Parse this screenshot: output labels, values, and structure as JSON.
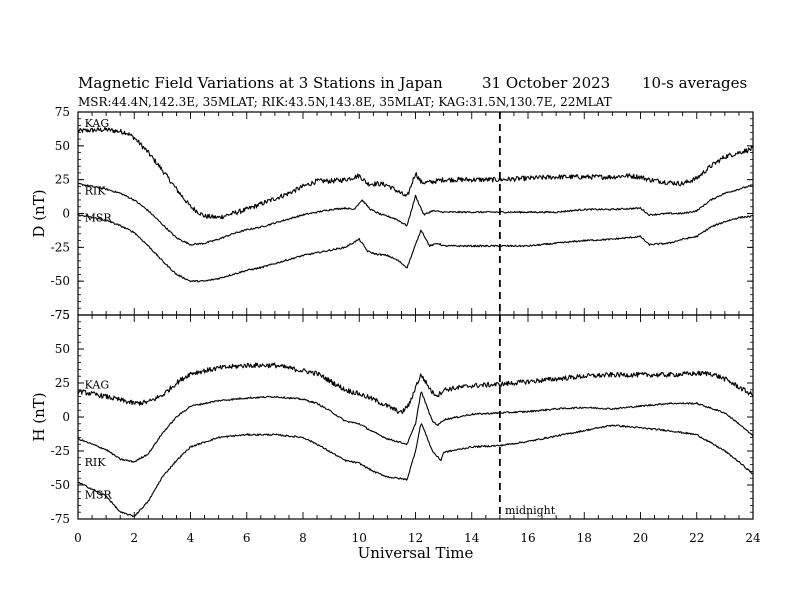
{
  "title": "Magnetic Field Variations at 3 Stations in Japan",
  "date": "31 October 2023",
  "averaging": "10-s averages",
  "subtitle": "MSR:44.4N,142.3E, 35MLAT;  RIK:43.5N,143.8E, 35MLAT;  KAG:31.5N,130.7E, 22MLAT",
  "annotation": "midnight",
  "chart_data": [
    {
      "type": "line",
      "panel": "top",
      "ylabel": "D (nT)",
      "xlabel": "",
      "xlim": [
        0,
        24
      ],
      "ylim": [
        -75,
        75
      ],
      "xticks": [
        0,
        2,
        4,
        6,
        8,
        10,
        12,
        14,
        16,
        18,
        20,
        22,
        24
      ],
      "yticks": [
        75,
        50,
        25,
        0,
        -25,
        -50,
        -75
      ],
      "vline": 15,
      "grid": false,
      "series": [
        {
          "name": "KAG",
          "noise": 1.8,
          "points": [
            [
              0,
              61
            ],
            [
              1,
              62
            ],
            [
              1.7,
              60
            ],
            [
              2,
              56
            ],
            [
              2.5,
              45
            ],
            [
              3,
              32
            ],
            [
              3.5,
              18
            ],
            [
              4,
              5
            ],
            [
              4.5,
              -2
            ],
            [
              5,
              -3
            ],
            [
              5.5,
              0
            ],
            [
              6,
              3
            ],
            [
              6.5,
              7
            ],
            [
              7,
              11
            ],
            [
              7.5,
              15
            ],
            [
              8,
              20
            ],
            [
              8.5,
              24
            ],
            [
              9,
              24
            ],
            [
              9.5,
              25
            ],
            [
              10,
              28
            ],
            [
              10.3,
              22
            ],
            [
              10.7,
              22
            ],
            [
              11,
              21
            ],
            [
              11.4,
              16
            ],
            [
              11.7,
              12
            ],
            [
              12,
              30
            ],
            [
              12.2,
              23
            ],
            [
              12.5,
              23
            ],
            [
              13,
              25
            ],
            [
              14,
              25
            ],
            [
              15,
              25
            ],
            [
              16,
              26
            ],
            [
              17,
              27
            ],
            [
              18,
              27
            ],
            [
              19,
              27
            ],
            [
              19.5,
              28
            ],
            [
              20,
              27
            ],
            [
              20.3,
              25
            ],
            [
              21,
              23
            ],
            [
              21.5,
              22
            ],
            [
              22,
              26
            ],
            [
              22.5,
              35
            ],
            [
              23,
              42
            ],
            [
              23.5,
              45
            ],
            [
              24,
              48
            ]
          ]
        },
        {
          "name": "RIK",
          "noise": 0.6,
          "points": [
            [
              0,
              22
            ],
            [
              1,
              18
            ],
            [
              1.5,
              15
            ],
            [
              2,
              10
            ],
            [
              2.5,
              2
            ],
            [
              3,
              -8
            ],
            [
              3.5,
              -18
            ],
            [
              4,
              -23
            ],
            [
              4.5,
              -22
            ],
            [
              5,
              -19
            ],
            [
              5.5,
              -15
            ],
            [
              6,
              -12
            ],
            [
              6.5,
              -10
            ],
            [
              7,
              -7
            ],
            [
              7.5,
              -4
            ],
            [
              8,
              -1
            ],
            [
              8.5,
              1
            ],
            [
              9,
              3
            ],
            [
              9.5,
              4
            ],
            [
              9.8,
              3
            ],
            [
              10.1,
              10
            ],
            [
              10.4,
              3
            ],
            [
              10.8,
              -1
            ],
            [
              11,
              -2
            ],
            [
              11.3,
              -4
            ],
            [
              11.7,
              -9
            ],
            [
              12,
              13
            ],
            [
              12.3,
              -1
            ],
            [
              12.6,
              2
            ],
            [
              13,
              1
            ],
            [
              14,
              1
            ],
            [
              15,
              1
            ],
            [
              16,
              1
            ],
            [
              17,
              1
            ],
            [
              18,
              3
            ],
            [
              19,
              3
            ],
            [
              20,
              4
            ],
            [
              20.3,
              -1
            ],
            [
              21,
              0
            ],
            [
              21.5,
              0
            ],
            [
              22,
              2
            ],
            [
              22.5,
              10
            ],
            [
              23,
              15
            ],
            [
              23.5,
              18
            ],
            [
              24,
              21
            ]
          ]
        },
        {
          "name": "MSR",
          "noise": 0.6,
          "points": [
            [
              0,
              -1
            ],
            [
              1,
              -5
            ],
            [
              1.5,
              -9
            ],
            [
              2,
              -14
            ],
            [
              2.5,
              -24
            ],
            [
              3,
              -35
            ],
            [
              3.5,
              -45
            ],
            [
              4,
              -50
            ],
            [
              4.5,
              -50
            ],
            [
              5,
              -48
            ],
            [
              5.5,
              -45
            ],
            [
              6,
              -42
            ],
            [
              6.5,
              -40
            ],
            [
              7,
              -37
            ],
            [
              7.5,
              -34
            ],
            [
              8,
              -31
            ],
            [
              8.5,
              -29
            ],
            [
              9,
              -27
            ],
            [
              9.5,
              -25
            ],
            [
              10,
              -19
            ],
            [
              10.3,
              -28
            ],
            [
              10.6,
              -30
            ],
            [
              11,
              -31
            ],
            [
              11.4,
              -35
            ],
            [
              11.7,
              -40
            ],
            [
              12.2,
              -12
            ],
            [
              12.5,
              -24
            ],
            [
              12.8,
              -22
            ],
            [
              13,
              -24
            ],
            [
              14,
              -24
            ],
            [
              15,
              -24
            ],
            [
              16,
              -24
            ],
            [
              17,
              -22
            ],
            [
              18,
              -20
            ],
            [
              19,
              -19
            ],
            [
              20,
              -17
            ],
            [
              20.3,
              -23
            ],
            [
              21,
              -22
            ],
            [
              21.5,
              -19
            ],
            [
              22,
              -17
            ],
            [
              22.5,
              -10
            ],
            [
              23,
              -6
            ],
            [
              23.5,
              -3
            ],
            [
              24,
              -2
            ]
          ]
        }
      ],
      "label_positions": [
        {
          "name": "KAG",
          "x": 0.2,
          "y": 64
        },
        {
          "name": "RIK",
          "x": 0.2,
          "y": 14
        },
        {
          "name": "MSR",
          "x": 0.2,
          "y": -6
        }
      ]
    },
    {
      "type": "line",
      "panel": "bottom",
      "ylabel": "H (nT)",
      "xlabel": "Universal Time",
      "xlim": [
        0,
        24
      ],
      "ylim": [
        -75,
        75
      ],
      "xticks": [
        0,
        2,
        4,
        6,
        8,
        10,
        12,
        14,
        16,
        18,
        20,
        22,
        24
      ],
      "yticks": [
        75,
        50,
        25,
        0,
        -25,
        -50,
        -75
      ],
      "vline": 15,
      "grid": false,
      "series": [
        {
          "name": "KAG",
          "noise": 1.8,
          "points": [
            [
              0,
              19
            ],
            [
              1,
              15
            ],
            [
              2,
              10
            ],
            [
              2.5,
              11
            ],
            [
              3,
              16
            ],
            [
              3.5,
              25
            ],
            [
              4,
              32
            ],
            [
              5,
              36
            ],
            [
              6,
              38
            ],
            [
              7,
              38
            ],
            [
              8,
              34
            ],
            [
              8.5,
              32
            ],
            [
              9,
              26
            ],
            [
              9.5,
              20
            ],
            [
              10,
              17
            ],
            [
              10.5,
              13
            ],
            [
              11,
              8
            ],
            [
              11.5,
              3
            ],
            [
              11.8,
              10
            ],
            [
              12,
              22
            ],
            [
              12.2,
              31
            ],
            [
              12.6,
              18
            ],
            [
              12.8,
              16
            ],
            [
              13,
              20
            ],
            [
              14,
              23
            ],
            [
              15,
              24
            ],
            [
              16,
              26
            ],
            [
              17,
              28
            ],
            [
              18,
              30
            ],
            [
              19,
              31
            ],
            [
              20,
              31
            ],
            [
              21,
              31
            ],
            [
              22,
              32
            ],
            [
              22.5,
              32
            ],
            [
              23,
              28
            ],
            [
              23.5,
              22
            ],
            [
              24,
              16
            ]
          ]
        },
        {
          "name": "RIK",
          "noise": 0.6,
          "points": [
            [
              0,
              -16
            ],
            [
              1,
              -24
            ],
            [
              1.5,
              -31
            ],
            [
              2,
              -33
            ],
            [
              2.5,
              -27
            ],
            [
              3,
              -12
            ],
            [
              3.5,
              0
            ],
            [
              4,
              8
            ],
            [
              5,
              12
            ],
            [
              6,
              14
            ],
            [
              7,
              15
            ],
            [
              8,
              13
            ],
            [
              8.5,
              10
            ],
            [
              9,
              4
            ],
            [
              9.5,
              -3
            ],
            [
              10,
              -5
            ],
            [
              10.5,
              -11
            ],
            [
              11,
              -16
            ],
            [
              11.7,
              -20
            ],
            [
              12,
              -5
            ],
            [
              12.2,
              19
            ],
            [
              12.6,
              -3
            ],
            [
              12.8,
              -6
            ],
            [
              13,
              -2
            ],
            [
              14,
              2
            ],
            [
              15,
              3
            ],
            [
              16,
              4
            ],
            [
              17,
              6
            ],
            [
              18,
              7
            ],
            [
              19,
              6
            ],
            [
              20,
              8
            ],
            [
              21,
              10
            ],
            [
              22,
              10
            ],
            [
              23,
              3
            ],
            [
              23.5,
              -5
            ],
            [
              24,
              -14
            ]
          ]
        },
        {
          "name": "MSR",
          "noise": 0.6,
          "points": [
            [
              0,
              -48
            ],
            [
              1,
              -58
            ],
            [
              1.5,
              -70
            ],
            [
              2,
              -73
            ],
            [
              2.5,
              -62
            ],
            [
              3,
              -44
            ],
            [
              3.5,
              -32
            ],
            [
              4,
              -22
            ],
            [
              5,
              -15
            ],
            [
              6,
              -13
            ],
            [
              7,
              -13
            ],
            [
              8,
              -15
            ],
            [
              8.5,
              -20
            ],
            [
              9,
              -26
            ],
            [
              9.5,
              -32
            ],
            [
              10,
              -34
            ],
            [
              10.5,
              -40
            ],
            [
              11,
              -44
            ],
            [
              11.7,
              -46
            ],
            [
              12,
              -25
            ],
            [
              12.2,
              -4
            ],
            [
              12.6,
              -25
            ],
            [
              12.9,
              -32
            ],
            [
              13,
              -26
            ],
            [
              14,
              -22
            ],
            [
              15,
              -21
            ],
            [
              16,
              -18
            ],
            [
              17,
              -14
            ],
            [
              18,
              -10
            ],
            [
              19,
              -6
            ],
            [
              20,
              -8
            ],
            [
              21,
              -10
            ],
            [
              22,
              -13
            ],
            [
              23,
              -25
            ],
            [
              23.5,
              -33
            ],
            [
              24,
              -42
            ]
          ]
        }
      ],
      "label_positions": [
        {
          "name": "KAG",
          "x": 0.2,
          "y": 21
        },
        {
          "name": "RIK",
          "x": 0.2,
          "y": -36
        },
        {
          "name": "MSR",
          "x": 0.2,
          "y": -60
        }
      ]
    }
  ]
}
